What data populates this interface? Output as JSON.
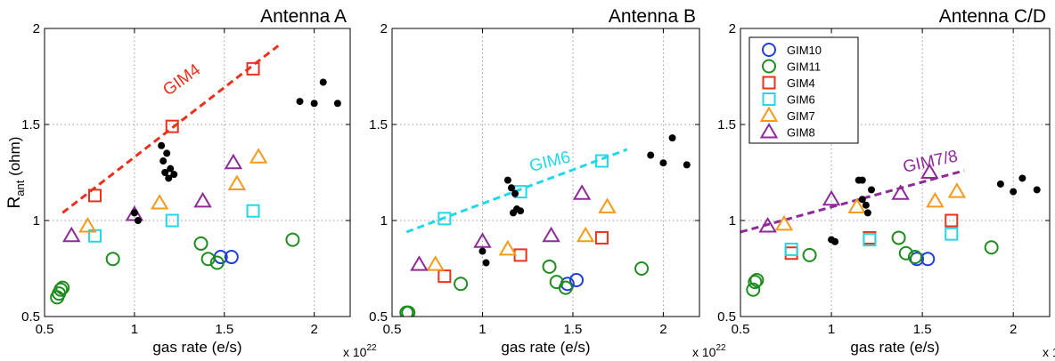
{
  "chart_data": [
    {
      "type": "scatter",
      "title": "Antenna A",
      "xlabel": "gas rate (e/s)",
      "ylabel": "R",
      "ylabel_sub": "ant",
      "ylabel_suffix": " (ohm)",
      "x_exponent": "x 10",
      "x_exponent_power": "22",
      "xlim": [
        0.5,
        2.2
      ],
      "ylim": [
        0.5,
        2
      ],
      "xticks": [
        0.5,
        1,
        1.5,
        2
      ],
      "xticklabels": [
        "0.5",
        "1",
        "1.5",
        "2"
      ],
      "yticks": [
        0.5,
        1,
        1.5,
        2
      ],
      "yticklabels": [
        "0.5",
        "1",
        "1.5",
        "2"
      ],
      "grid": true,
      "series": [
        {
          "key": "GIM10",
          "marker": "circle",
          "color": "#1f3fd6",
          "points": [
            [
              1.48,
              0.81
            ],
            [
              1.54,
              0.81
            ]
          ]
        },
        {
          "key": "GIM11",
          "marker": "circle",
          "color": "#1e8c1e",
          "points": [
            [
              0.57,
              0.6
            ],
            [
              0.58,
              0.62
            ],
            [
              0.59,
              0.64
            ],
            [
              0.6,
              0.65
            ],
            [
              0.88,
              0.8
            ],
            [
              1.37,
              0.88
            ],
            [
              1.41,
              0.8
            ],
            [
              1.46,
              0.78
            ],
            [
              1.88,
              0.9
            ]
          ]
        },
        {
          "key": "GIM4",
          "marker": "square",
          "color": "#e8321e",
          "points": [
            [
              0.78,
              1.13
            ],
            [
              1.21,
              1.49
            ],
            [
              1.66,
              1.79
            ]
          ]
        },
        {
          "key": "GIM6",
          "marker": "square",
          "color": "#22d8e8",
          "points": [
            [
              0.78,
              0.92
            ],
            [
              1.21,
              1.0
            ],
            [
              1.66,
              1.05
            ]
          ]
        },
        {
          "key": "GIM7",
          "marker": "triangle",
          "color": "#f59a1a",
          "points": [
            [
              0.74,
              0.97
            ],
            [
              1.14,
              1.09
            ],
            [
              1.57,
              1.19
            ],
            [
              1.69,
              1.33
            ]
          ]
        },
        {
          "key": "GIM8",
          "marker": "triangle",
          "color": "#8e2a99",
          "points": [
            [
              0.65,
              0.92
            ],
            [
              1.0,
              1.03
            ],
            [
              1.38,
              1.1
            ],
            [
              1.55,
              1.3
            ]
          ]
        },
        {
          "key": "black",
          "marker": "dot",
          "color": "#000000",
          "points": [
            [
              1.0,
              1.04
            ],
            [
              1.02,
              1.0
            ],
            [
              1.15,
              1.39
            ],
            [
              1.16,
              1.31
            ],
            [
              1.17,
              1.25
            ],
            [
              1.18,
              1.35
            ],
            [
              1.19,
              1.22
            ],
            [
              1.2,
              1.27
            ],
            [
              1.22,
              1.24
            ],
            [
              1.92,
              1.62
            ],
            [
              2.0,
              1.61
            ],
            [
              2.05,
              1.72
            ],
            [
              2.13,
              1.61
            ]
          ]
        }
      ],
      "fit_line": {
        "label": "GIM4",
        "color": "#e8321e",
        "x": [
          0.6,
          1.8
        ],
        "y": [
          1.04,
          1.91
        ],
        "label_at": [
          1.28,
          1.71
        ],
        "label_angle_deg": -36
      }
    },
    {
      "type": "scatter",
      "title": "Antenna B",
      "xlabel": "gas rate (e/s)",
      "x_exponent": "x 10",
      "x_exponent_power": "22",
      "xlim": [
        0.5,
        2.2
      ],
      "ylim": [
        0.5,
        2
      ],
      "xticks": [
        0.5,
        1,
        1.5,
        2
      ],
      "xticklabels": [
        "0.5",
        "1",
        "1.5",
        "2"
      ],
      "yticks": [
        0.5,
        1,
        1.5,
        2
      ],
      "yticklabels": [
        "0.5",
        "1",
        "1.5",
        "2"
      ],
      "grid": true,
      "series": [
        {
          "key": "GIM10",
          "marker": "circle",
          "color": "#1f3fd6",
          "points": [
            [
              1.47,
              0.67
            ],
            [
              1.52,
              0.69
            ]
          ]
        },
        {
          "key": "GIM11",
          "marker": "circle",
          "color": "#1e8c1e",
          "points": [
            [
              0.58,
              0.52
            ],
            [
              0.59,
              0.52
            ],
            [
              0.88,
              0.67
            ],
            [
              1.37,
              0.76
            ],
            [
              1.41,
              0.68
            ],
            [
              1.46,
              0.65
            ],
            [
              1.88,
              0.75
            ]
          ]
        },
        {
          "key": "GIM4",
          "marker": "square",
          "color": "#e8321e",
          "points": [
            [
              0.79,
              0.71
            ],
            [
              1.21,
              0.82
            ],
            [
              1.66,
              0.91
            ]
          ]
        },
        {
          "key": "GIM6",
          "marker": "square",
          "color": "#22d8e8",
          "points": [
            [
              0.79,
              1.01
            ],
            [
              1.21,
              1.15
            ],
            [
              1.66,
              1.31
            ]
          ]
        },
        {
          "key": "GIM7",
          "marker": "triangle",
          "color": "#f59a1a",
          "points": [
            [
              0.74,
              0.77
            ],
            [
              1.14,
              0.85
            ],
            [
              1.57,
              0.92
            ],
            [
              1.69,
              1.07
            ]
          ]
        },
        {
          "key": "GIM8",
          "marker": "triangle",
          "color": "#8e2a99",
          "points": [
            [
              0.65,
              0.77
            ],
            [
              1.0,
              0.89
            ],
            [
              1.38,
              0.92
            ],
            [
              1.55,
              1.14
            ]
          ]
        },
        {
          "key": "black",
          "marker": "dot",
          "color": "#000000",
          "points": [
            [
              1.0,
              0.84
            ],
            [
              1.02,
              0.78
            ],
            [
              1.14,
              1.21
            ],
            [
              1.16,
              1.17
            ],
            [
              1.17,
              1.04
            ],
            [
              1.18,
              1.14
            ],
            [
              1.19,
              1.06
            ],
            [
              1.21,
              1.05
            ],
            [
              1.93,
              1.34
            ],
            [
              2.0,
              1.3
            ],
            [
              2.05,
              1.43
            ],
            [
              2.13,
              1.29
            ]
          ]
        }
      ],
      "fit_line": {
        "label": "GIM6",
        "color": "#22d8e8",
        "x": [
          0.58,
          1.8
        ],
        "y": [
          0.94,
          1.37
        ],
        "label_at": [
          1.38,
          1.28
        ],
        "label_angle_deg": -14
      }
    },
    {
      "type": "scatter",
      "title": "Antenna C/D",
      "xlabel": "gas rate (e/s)",
      "x_exponent": "x 10",
      "x_exponent_power": "22",
      "xlim": [
        0.5,
        2.2
      ],
      "ylim": [
        0.5,
        2
      ],
      "xticks": [
        0.5,
        1,
        1.5,
        2
      ],
      "xticklabels": [
        "0.5",
        "1",
        "1.5",
        "2"
      ],
      "yticks": [
        0.5,
        1,
        1.5,
        2
      ],
      "yticklabels": [
        "0.5",
        "1",
        "1.5",
        "2"
      ],
      "grid": true,
      "legend": {
        "placement": "top-left",
        "entries": [
          {
            "key": "GIM10",
            "label": "GIM10"
          },
          {
            "key": "GIM11",
            "label": "GIM11"
          },
          {
            "key": "GIM4",
            "label": "GIM4"
          },
          {
            "key": "GIM6",
            "label": "GIM6"
          },
          {
            "key": "GIM7",
            "label": "GIM7"
          },
          {
            "key": "GIM8",
            "label": "GIM8"
          }
        ]
      },
      "series": [
        {
          "key": "GIM10",
          "marker": "circle",
          "color": "#1f3fd6",
          "points": [
            [
              1.47,
              0.8
            ],
            [
              1.53,
              0.8
            ]
          ]
        },
        {
          "key": "GIM11",
          "marker": "circle",
          "color": "#1e8c1e",
          "points": [
            [
              0.57,
              0.64
            ],
            [
              0.58,
              0.68
            ],
            [
              0.59,
              0.69
            ],
            [
              0.88,
              0.82
            ],
            [
              1.37,
              0.91
            ],
            [
              1.41,
              0.83
            ],
            [
              1.46,
              0.81
            ],
            [
              1.88,
              0.86
            ]
          ]
        },
        {
          "key": "GIM4",
          "marker": "square",
          "color": "#e8321e",
          "points": [
            [
              0.78,
              0.83
            ],
            [
              1.21,
              0.91
            ],
            [
              1.66,
              1.0
            ]
          ]
        },
        {
          "key": "GIM6",
          "marker": "square",
          "color": "#22d8e8",
          "points": [
            [
              0.78,
              0.85
            ],
            [
              1.21,
              0.9
            ],
            [
              1.66,
              0.93
            ]
          ]
        },
        {
          "key": "GIM7",
          "marker": "triangle",
          "color": "#f59a1a",
          "points": [
            [
              0.74,
              0.98
            ],
            [
              1.14,
              1.07
            ],
            [
              1.57,
              1.1
            ],
            [
              1.69,
              1.15
            ]
          ]
        },
        {
          "key": "GIM8",
          "marker": "triangle",
          "color": "#8e2a99",
          "points": [
            [
              0.65,
              0.97
            ],
            [
              1.0,
              1.11
            ],
            [
              1.38,
              1.14
            ],
            [
              1.54,
              1.25
            ]
          ]
        },
        {
          "key": "black",
          "marker": "dot",
          "color": "#000000",
          "points": [
            [
              1.0,
              0.9
            ],
            [
              1.02,
              0.89
            ],
            [
              1.15,
              1.21
            ],
            [
              1.17,
              1.21
            ],
            [
              1.17,
              1.11
            ],
            [
              1.19,
              1.08
            ],
            [
              1.2,
              1.04
            ],
            [
              1.22,
              1.16
            ],
            [
              1.93,
              1.19
            ],
            [
              2.0,
              1.15
            ],
            [
              2.05,
              1.22
            ],
            [
              2.13,
              1.16
            ]
          ]
        }
      ],
      "fit_line": {
        "label": "GIM7/8",
        "color": "#8e2a99",
        "x": [
          0.5,
          1.73
        ],
        "y": [
          0.94,
          1.26
        ],
        "label_at": [
          1.55,
          1.28
        ],
        "label_angle_deg": -12
      }
    }
  ]
}
